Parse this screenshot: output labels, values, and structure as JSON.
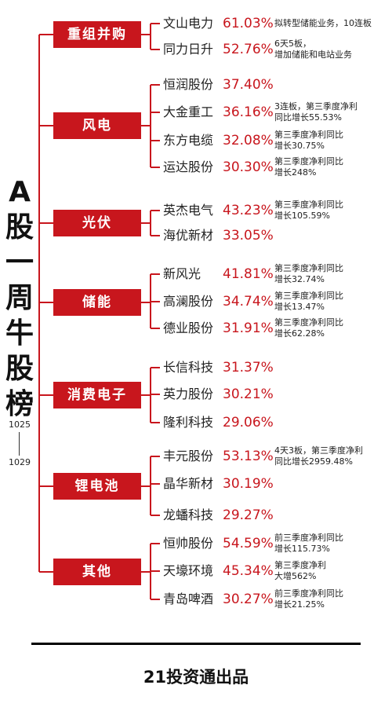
{
  "title_chars": [
    "A",
    "股",
    "一",
    "周",
    "牛",
    "股",
    "榜"
  ],
  "date_start": "1025",
  "date_end": "1029",
  "footer": "21投资通出品",
  "colors": {
    "accent": "#c8161d",
    "line": "#c8161d",
    "text": "#222222"
  },
  "categories": [
    {
      "label": "重组并购",
      "stocks": [
        {
          "name": "文山电力",
          "pct": "61.03%",
          "note": "拟转型储能业务，10连板"
        },
        {
          "name": "同力日升",
          "pct": "52.76%",
          "note": "6天5板，\n增加储能和电站业务"
        }
      ]
    },
    {
      "label": "风电",
      "stocks": [
        {
          "name": "恒润股份",
          "pct": "37.40%",
          "note": ""
        },
        {
          "name": "大金重工",
          "pct": "36.16%",
          "note": "3连板，第三季度净利\n同比增长55.53%"
        },
        {
          "name": "东方电缆",
          "pct": "32.08%",
          "note": "第三季度净利同比\n增长30.75%"
        },
        {
          "name": "运达股份",
          "pct": "30.30%",
          "note": "第三季度净利同比\n增长248%"
        }
      ]
    },
    {
      "label": "光伏",
      "stocks": [
        {
          "name": "英杰电气",
          "pct": "43.23%",
          "note": "第三季度净利同比\n增长105.59%"
        },
        {
          "name": "海优新材",
          "pct": "33.05%",
          "note": ""
        }
      ]
    },
    {
      "label": "储能",
      "stocks": [
        {
          "name": "新风光",
          "pct": "41.81%",
          "note": "第三季度净利同比\n增长32.74%"
        },
        {
          "name": "高澜股份",
          "pct": "34.74%",
          "note": "第三季度净利同比\n增长13.47%"
        },
        {
          "name": "德业股份",
          "pct": "31.91%",
          "note": "第三季度净利同比\n增长62.28%"
        }
      ]
    },
    {
      "label": "消费电子",
      "stocks": [
        {
          "name": "长信科技",
          "pct": "31.37%",
          "note": ""
        },
        {
          "name": "英力股份",
          "pct": "30.21%",
          "note": ""
        },
        {
          "name": "隆利科技",
          "pct": "29.06%",
          "note": ""
        }
      ]
    },
    {
      "label": "锂电池",
      "stocks": [
        {
          "name": "丰元股份",
          "pct": "53.13%",
          "note": "4天3板，第三季度净利\n同比增长2959.48%"
        },
        {
          "name": "晶华新材",
          "pct": "30.19%",
          "note": ""
        },
        {
          "name": "龙蟠科技",
          "pct": "29.27%",
          "note": ""
        }
      ]
    },
    {
      "label": "其他",
      "stocks": [
        {
          "name": "恒帅股份",
          "pct": "54.59%",
          "note": "前三季度净利同比\n增长115.73%"
        },
        {
          "name": "天壕环境",
          "pct": "45.34%",
          "note": "第三季度净利\n大增562%"
        },
        {
          "name": "青岛啤酒",
          "pct": "30.27%",
          "note": "前三季度净利同比\n增长21.25%"
        }
      ]
    }
  ]
}
